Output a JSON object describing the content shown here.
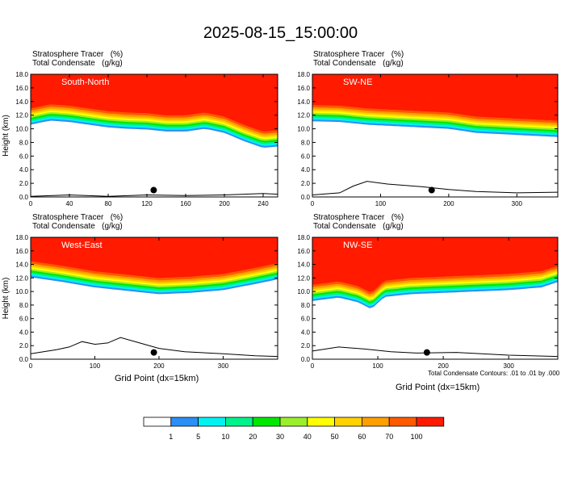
{
  "title": "2025-08-15_15:00:00",
  "chart_data": [
    {
      "type": "heatmap",
      "panel_label": "South-North",
      "caption_line1": "Stratosphere Tracer   (%)",
      "caption_line2": "Total Condensate   (g/kg)",
      "ylabel": "Height (km)",
      "xlabel": "",
      "xlim": [
        0,
        255
      ],
      "ylim": [
        0,
        18
      ],
      "xticks": [
        "0",
        "40",
        "80",
        "120",
        "160",
        "200",
        "240"
      ],
      "xtick_values": [
        0,
        40,
        80,
        120,
        160,
        200,
        240
      ],
      "yticks": [
        "0.0",
        "2.0",
        "4.0",
        "6.0",
        "8.0",
        "10.0",
        "12.0",
        "14.0",
        "16.0",
        "18.0"
      ],
      "tracer_boundary": [
        [
          0,
          13.0
        ],
        [
          20,
          13.6
        ],
        [
          40,
          13.4
        ],
        [
          60,
          13.0
        ],
        [
          80,
          12.6
        ],
        [
          100,
          12.4
        ],
        [
          120,
          12.3
        ],
        [
          140,
          12.0
        ],
        [
          160,
          12.0
        ],
        [
          180,
          12.4
        ],
        [
          200,
          11.8
        ],
        [
          220,
          10.6
        ],
        [
          240,
          9.6
        ],
        [
          255,
          9.8
        ]
      ],
      "terrain": [
        [
          0,
          0.1
        ],
        [
          40,
          0.3
        ],
        [
          80,
          0.1
        ],
        [
          120,
          0.3
        ],
        [
          160,
          0.2
        ],
        [
          200,
          0.3
        ],
        [
          240,
          0.5
        ],
        [
          255,
          0.4
        ]
      ],
      "marker_x": 127,
      "contour_box_label": "01"
    },
    {
      "type": "heatmap",
      "panel_label": "SW-NE",
      "caption_line1": "Stratosphere Tracer   (%)",
      "caption_line2": "Total Condensate   (g/kg)",
      "ylabel": "",
      "xlabel": "",
      "xlim": [
        0,
        360
      ],
      "ylim": [
        0,
        18
      ],
      "xticks": [
        "0",
        "100",
        "200",
        "300"
      ],
      "xtick_values": [
        0,
        100,
        200,
        300
      ],
      "yticks": [
        "0.0",
        "2.0",
        "4.0",
        "6.0",
        "8.0",
        "10.0",
        "12.0",
        "14.0",
        "16.0",
        "18.0"
      ],
      "tracer_boundary": [
        [
          0,
          13.5
        ],
        [
          40,
          13.4
        ],
        [
          80,
          13.0
        ],
        [
          120,
          12.8
        ],
        [
          160,
          12.6
        ],
        [
          200,
          12.4
        ],
        [
          240,
          11.8
        ],
        [
          280,
          11.6
        ],
        [
          320,
          11.4
        ],
        [
          360,
          11.2
        ]
      ],
      "terrain": [
        [
          0,
          0.3
        ],
        [
          40,
          0.6
        ],
        [
          60,
          1.6
        ],
        [
          80,
          2.3
        ],
        [
          110,
          1.9
        ],
        [
          160,
          1.5
        ],
        [
          200,
          1.1
        ],
        [
          240,
          0.8
        ],
        [
          300,
          0.6
        ],
        [
          360,
          0.7
        ]
      ],
      "marker_x": 175,
      "contour_box_label": ""
    },
    {
      "type": "heatmap",
      "panel_label": "West-East",
      "caption_line1": "Stratosphere Tracer   (%)",
      "caption_line2": "Total Condensate   (g/kg)",
      "ylabel": "Height (km)",
      "xlabel": "Grid Point (dx=15km)",
      "xlim": [
        0,
        385
      ],
      "ylim": [
        0,
        18
      ],
      "xticks": [
        "0",
        "100",
        "200",
        "300"
      ],
      "xtick_values": [
        0,
        100,
        200,
        300
      ],
      "yticks": [
        "0.0",
        "2.0",
        "4.0",
        "6.0",
        "8.0",
        "10.0",
        "12.0",
        "14.0",
        "16.0",
        "18.0"
      ],
      "tracer_boundary": [
        [
          0,
          14.5
        ],
        [
          50,
          13.8
        ],
        [
          100,
          13.0
        ],
        [
          150,
          12.5
        ],
        [
          200,
          12.0
        ],
        [
          250,
          12.2
        ],
        [
          300,
          12.6
        ],
        [
          350,
          13.5
        ],
        [
          385,
          14.2
        ]
      ],
      "terrain": [
        [
          0,
          0.8
        ],
        [
          40,
          1.4
        ],
        [
          60,
          1.8
        ],
        [
          80,
          2.6
        ],
        [
          100,
          2.2
        ],
        [
          120,
          2.4
        ],
        [
          140,
          3.2
        ],
        [
          170,
          2.4
        ],
        [
          200,
          1.6
        ],
        [
          240,
          1.1
        ],
        [
          300,
          0.8
        ],
        [
          350,
          0.5
        ],
        [
          385,
          0.4
        ]
      ],
      "marker_x": 192,
      "contour_box_label": "01"
    },
    {
      "type": "heatmap",
      "panel_label": "NW-SE",
      "caption_line1": "Stratosphere Tracer   (%)",
      "caption_line2": "Total Condensate   (g/kg)",
      "ylabel": "",
      "xlabel": "Grid Point (dx=15km)",
      "xlim": [
        0,
        375
      ],
      "ylim": [
        0,
        18
      ],
      "xticks": [
        "0",
        "100",
        "200",
        "300"
      ],
      "xtick_values": [
        0,
        100,
        200,
        300
      ],
      "yticks": [
        "0.0",
        "2.0",
        "4.0",
        "6.0",
        "8.0",
        "10.0",
        "12.0",
        "14.0",
        "16.0",
        "18.0"
      ],
      "tracer_boundary": [
        [
          0,
          11.0
        ],
        [
          40,
          11.5
        ],
        [
          70,
          10.8
        ],
        [
          90,
          9.8
        ],
        [
          110,
          11.6
        ],
        [
          150,
          12.0
        ],
        [
          200,
          12.2
        ],
        [
          250,
          12.4
        ],
        [
          300,
          12.6
        ],
        [
          350,
          13.0
        ],
        [
          375,
          13.8
        ]
      ],
      "terrain": [
        [
          0,
          1.2
        ],
        [
          40,
          1.8
        ],
        [
          80,
          1.5
        ],
        [
          120,
          1.1
        ],
        [
          160,
          0.9
        ],
        [
          220,
          1.0
        ],
        [
          300,
          0.6
        ],
        [
          375,
          0.4
        ]
      ],
      "marker_x": 175,
      "contour_box_label": "01"
    }
  ],
  "footnote": "Total Condensate Contours: .01 to .01 by .000",
  "colorbar": {
    "labels": [
      "1",
      "5",
      "10",
      "20",
      "30",
      "40",
      "50",
      "60",
      "70",
      "100"
    ],
    "colors": [
      "#ffffff",
      "#2b8ff5",
      "#00f2f2",
      "#00f28a",
      "#00e800",
      "#9aef2a",
      "#ffff00",
      "#ffd200",
      "#ffa000",
      "#ff5a00",
      "#ff1a00"
    ]
  }
}
